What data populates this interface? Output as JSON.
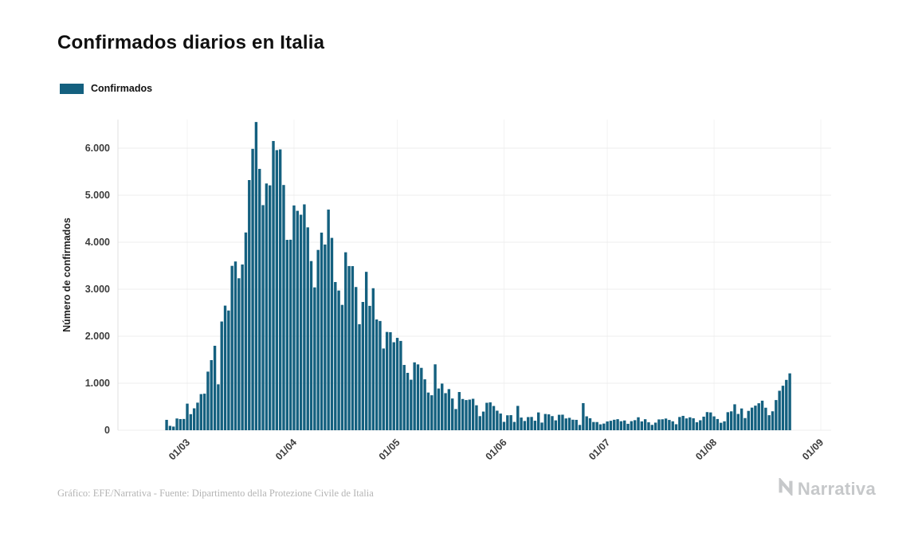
{
  "header": {
    "title": "Confirmados diarios en Italia"
  },
  "legend": {
    "label": "Confirmados",
    "color": "#14607f"
  },
  "footer": {
    "caption": "Gráfico: EFE/Narrativa - Fuente: Dipartimento della Protezione Civile de Italia",
    "brand": "Narrativa"
  },
  "chart_data": {
    "type": "bar",
    "title": "Confirmados diarios en Italia",
    "series_name": "Confirmados",
    "xlabel": "",
    "ylabel": "Número de confirmados",
    "bar_color": "#14607f",
    "grid": "horizontal-light",
    "legend_position": "top-left",
    "ylim": [
      0,
      6600
    ],
    "x_start": "24/02",
    "x_end": "23/08",
    "frequency": "daily",
    "yticks": [
      {
        "value": 0,
        "label": "0"
      },
      {
        "value": 1000,
        "label": "1.000"
      },
      {
        "value": 2000,
        "label": "2.000"
      },
      {
        "value": 3000,
        "label": "3.000"
      },
      {
        "value": 4000,
        "label": "4.000"
      },
      {
        "value": 5000,
        "label": "5.000"
      },
      {
        "value": 6000,
        "label": "6.000"
      }
    ],
    "xticks": [
      "01/03",
      "01/04",
      "01/05",
      "01/06",
      "01/07",
      "01/08",
      "01/09"
    ],
    "values": [
      221,
      93,
      78,
      250,
      238,
      240,
      566,
      342,
      466,
      587,
      769,
      778,
      1247,
      1492,
      1797,
      977,
      2313,
      2651,
      2547,
      3497,
      3590,
      3233,
      3526,
      4207,
      5322,
      5986,
      6557,
      5560,
      4789,
      5249,
      5210,
      6153,
      5959,
      5974,
      5217,
      4050,
      4053,
      4782,
      4668,
      4585,
      4805,
      4316,
      3599,
      3039,
      3836,
      4204,
      3951,
      4694,
      4092,
      3153,
      2972,
      2667,
      3786,
      3493,
      3491,
      3047,
      2256,
      2729,
      3370,
      2646,
      3021,
      2357,
      2324,
      1739,
      2091,
      2086,
      1872,
      1965,
      1900,
      1389,
      1221,
      1075,
      1444,
      1401,
      1327,
      1083,
      802,
      744,
      1402,
      888,
      992,
      789,
      875,
      675,
      451,
      813,
      665,
      642,
      652,
      669,
      531,
      300,
      397,
      584,
      593,
      516,
      416,
      355,
      178,
      318,
      321,
      177,
      518,
      270,
      197,
      280,
      283,
      202,
      379,
      163,
      346,
      338,
      301,
      210,
      329,
      331,
      251,
      264,
      224,
      221,
      113,
      577,
      296,
      255,
      175,
      174,
      126,
      142,
      187,
      201,
      223,
      235,
      192,
      208,
      137,
      193,
      214,
      276,
      188,
      234,
      169,
      114,
      162,
      230,
      233,
      249,
      219,
      190,
      128,
      282,
      306,
      252,
      275,
      254,
      170,
      212,
      289,
      386,
      379,
      295,
      239,
      159,
      190,
      384,
      402,
      552,
      347,
      463,
      259,
      412,
      481,
      523,
      574,
      629,
      479,
      320,
      403,
      642,
      840,
      947,
      1071,
      1210
    ]
  }
}
